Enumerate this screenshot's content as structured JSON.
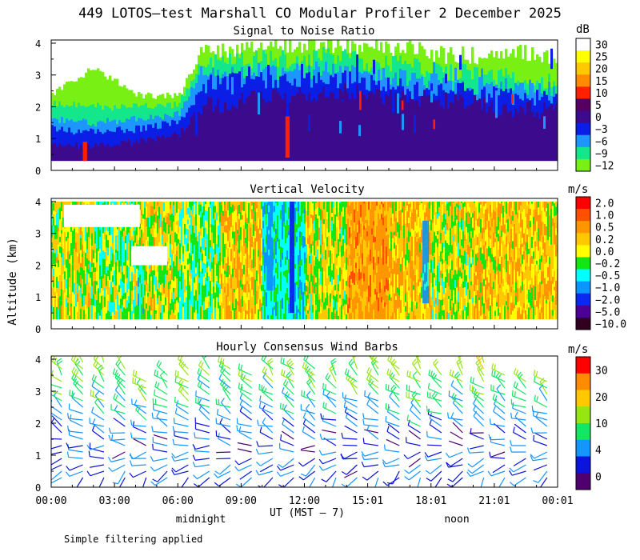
{
  "title": "449 LOTOS—test Marshall CO Modular Profiler  2 December 2025",
  "ylabel": "Altitude (km)",
  "xlabel": "UT  (MST – 7)",
  "x_ticks": [
    "00:00",
    "03:00",
    "06:00",
    "09:00",
    "12:00",
    "15:01",
    "18:01",
    "21:01",
    "00:01"
  ],
  "y_ticks": [
    "0",
    "1",
    "2",
    "3",
    "4"
  ],
  "midnight_label": "midnight",
  "noon_label": "noon",
  "footnote": "Simple filtering applied",
  "chart_data": [
    {
      "type": "heatmap",
      "title": "Signal to Noise Ratio",
      "unit": "dB",
      "x_range_hours": [
        0,
        24
      ],
      "ylim": [
        0,
        4
      ],
      "colorbar_ticks": [
        "30",
        "25",
        "20",
        "15",
        "10",
        "5",
        "0",
        "−3",
        "−6",
        "−9",
        "−12"
      ],
      "colorbar_colors": [
        "#ffffff",
        "#ffff00",
        "#ffc800",
        "#ff8c00",
        "#ff2000",
        "#550060",
        "#3c0a8c",
        "#0a1ee6",
        "#1e96ff",
        "#14e68c",
        "#78f014"
      ],
      "profile_hours": [
        0,
        2,
        4,
        6,
        7,
        9,
        11,
        13,
        15,
        17,
        19,
        21,
        23,
        24
      ],
      "profile_layers": [
        {
          "label": "−12 / −9",
          "tops_km": [
            2.4,
            3.2,
            2.4,
            2.3,
            3.7,
            3.9,
            4.0,
            4.0,
            3.9,
            3.8,
            3.6,
            3.6,
            3.7,
            3.6
          ]
        },
        {
          "label": "−6",
          "tops_km": [
            2.1,
            2.0,
            2.0,
            2.1,
            3.3,
            3.5,
            3.5,
            3.6,
            3.4,
            3.3,
            3.1,
            3.0,
            2.9,
            2.8
          ]
        },
        {
          "label": "−3",
          "tops_km": [
            1.6,
            1.5,
            1.6,
            1.8,
            3.0,
            3.1,
            3.1,
            3.2,
            3.0,
            2.9,
            2.7,
            2.6,
            2.6,
            2.4
          ]
        },
        {
          "label": "0",
          "tops_km": [
            1.3,
            1.2,
            1.3,
            1.5,
            2.6,
            2.9,
            2.8,
            2.9,
            2.8,
            2.6,
            2.5,
            2.4,
            2.3,
            2.2
          ]
        },
        {
          "label": "5",
          "tops_km": [
            0.8,
            0.8,
            0.9,
            1.1,
            2.0,
            2.2,
            2.3,
            2.5,
            2.4,
            2.3,
            2.2,
            2.0,
            1.9,
            1.8
          ]
        }
      ],
      "cells": [
        {
          "from_h": 1.5,
          "to_h": 1.7,
          "bottom_km": 0.3,
          "top_km": 0.9,
          "dB": 10
        },
        {
          "from_h": 11.1,
          "to_h": 11.3,
          "bottom_km": 0.4,
          "top_km": 1.7,
          "dB": 10
        },
        {
          "from_h": 14.6,
          "to_h": 14.7,
          "bottom_km": 1.9,
          "top_km": 2.5,
          "dB": 10
        },
        {
          "from_h": 16.6,
          "to_h": 16.7,
          "bottom_km": 1.9,
          "top_km": 2.2,
          "dB": 10
        },
        {
          "from_h": 18.1,
          "to_h": 18.2,
          "bottom_km": 1.3,
          "top_km": 1.6,
          "dB": 10
        },
        {
          "from_h": 21.8,
          "to_h": 21.9,
          "bottom_km": 2.1,
          "top_km": 2.4,
          "dB": 10
        }
      ]
    },
    {
      "type": "heatmap",
      "title": "Vertical Velocity",
      "unit": "m/s",
      "x_range_hours": [
        0,
        24
      ],
      "ylim": [
        0,
        4
      ],
      "colorbar_ticks": [
        "2.0",
        "1.0",
        "0.5",
        "0.2",
        "0.0",
        "−0.2",
        "−0.5",
        "−1.0",
        "−2.0",
        "−5.0",
        "−10.0"
      ],
      "colorbar_colors": [
        "#ff0000",
        "#ff5000",
        "#ff9600",
        "#ffc800",
        "#ffff00",
        "#14e614",
        "#00ffff",
        "#0a96ff",
        "#0a28f0",
        "#4b0096",
        "#32001e"
      ],
      "columns": [
        {
          "from_h": 0,
          "to_h": 2,
          "m_s": 0.0
        },
        {
          "from_h": 2,
          "to_h": 4,
          "m_s": -0.2
        },
        {
          "from_h": 4,
          "to_h": 6,
          "m_s": 0.0
        },
        {
          "from_h": 6,
          "to_h": 8,
          "m_s": -0.2
        },
        {
          "from_h": 8,
          "to_h": 10,
          "m_s": 0.2
        },
        {
          "from_h": 10,
          "to_h": 12,
          "m_s": -0.5
        },
        {
          "from_h": 12,
          "to_h": 14,
          "m_s": 0.0
        },
        {
          "from_h": 14,
          "to_h": 16,
          "m_s": 0.5
        },
        {
          "from_h": 16,
          "to_h": 18,
          "m_s": 0.2
        },
        {
          "from_h": 18,
          "to_h": 20,
          "m_s": 0.0
        },
        {
          "from_h": 20,
          "to_h": 22,
          "m_s": 0.2
        },
        {
          "from_h": 22,
          "to_h": 24,
          "m_s": 0.2
        }
      ],
      "cells": [
        {
          "from_h": 10.2,
          "to_h": 10.5,
          "bottom_km": 1.2,
          "top_km": 4.0,
          "m_s": -1.0
        },
        {
          "from_h": 11.3,
          "to_h": 11.5,
          "bottom_km": 0.5,
          "top_km": 4.0,
          "m_s": -2.0
        },
        {
          "from_h": 17.6,
          "to_h": 17.9,
          "bottom_km": 0.8,
          "top_km": 3.4,
          "m_s": -1.0
        },
        {
          "from_h": 4.1,
          "to_h": 4.4,
          "bottom_km": 0.3,
          "top_km": 2.5,
          "m_s": -0.5
        }
      ],
      "data_gaps": [
        {
          "from_h": 0.6,
          "to_h": 4.2,
          "bottom_km": 3.2,
          "top_km": 3.9
        },
        {
          "from_h": 3.8,
          "to_h": 5.5,
          "bottom_km": 2.0,
          "top_km": 2.6
        }
      ]
    },
    {
      "type": "wind_barbs",
      "title": "Hourly Consensus Wind Barbs",
      "unit": "m/s",
      "colorbar_ticks": [
        "30",
        "20",
        "10",
        "4",
        "0"
      ],
      "colorbar_colors": [
        "#ff0000",
        "#ff8c00",
        "#ffc800",
        "#96e614",
        "#14e664",
        "#1496ff",
        "#0a14dc",
        "#50006e"
      ],
      "hours": [
        0.5,
        1.5,
        2.5,
        3.5,
        4.5,
        5.5,
        6.5,
        7.5,
        8.5,
        9.5,
        10.5,
        11.5,
        12.5,
        13.5,
        14.5,
        15.5,
        16.5,
        17.5,
        18.5,
        19.5,
        20.5,
        21.5,
        22.5,
        23.5
      ],
      "tops_km": [
        3.7,
        3.9,
        3.9,
        3.8,
        3.4,
        3.5,
        3.8,
        3.8,
        3.7,
        3.6,
        3.7,
        3.8,
        3.7,
        3.6,
        3.8,
        3.9,
        3.8,
        3.9,
        3.6,
        3.7,
        3.9,
        3.5,
        3.4,
        3.4
      ],
      "speed_profile_ms": [
        {
          "alt_km": 0.3,
          "speed": 4
        },
        {
          "alt_km": 1.0,
          "speed": 4
        },
        {
          "alt_km": 1.5,
          "speed": 3
        },
        {
          "alt_km": 2.2,
          "speed": 6
        },
        {
          "alt_km": 3.0,
          "speed": 9
        },
        {
          "alt_km": 3.8,
          "speed": 12
        }
      ],
      "direction_profile_deg": [
        {
          "alt_km": 0.3,
          "deg": 220
        },
        {
          "alt_km": 1.0,
          "deg": 260
        },
        {
          "alt_km": 1.5,
          "deg": 290
        },
        {
          "alt_km": 2.2,
          "deg": 300
        },
        {
          "alt_km": 3.0,
          "deg": 310
        },
        {
          "alt_km": 3.8,
          "deg": 320
        }
      ]
    }
  ]
}
